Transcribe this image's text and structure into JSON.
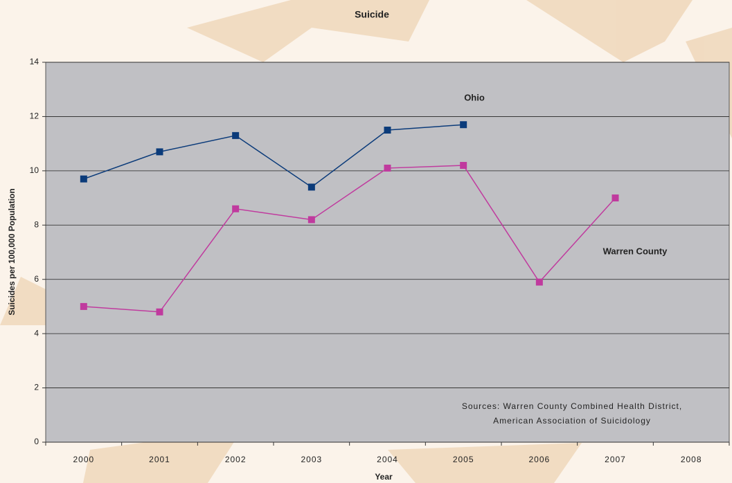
{
  "chart_data": {
    "type": "line",
    "title": "Suicide",
    "x_label": "Year",
    "y_label": "Suicides per 100,000 Population",
    "categories": [
      "2000",
      "2001",
      "2002",
      "2003",
      "2004",
      "2005",
      "2006",
      "2007",
      "2008"
    ],
    "series": [
      {
        "name": "Ohio",
        "color": "#0b3b7a",
        "values": [
          9.7,
          10.7,
          11.3,
          9.4,
          11.5,
          11.7,
          null,
          null,
          null
        ]
      },
      {
        "name": "Warren County",
        "color": "#c03a9e",
        "values": [
          5.0,
          4.8,
          8.6,
          8.2,
          10.1,
          10.2,
          5.9,
          9.0,
          null
        ]
      }
    ],
    "ylim": [
      0,
      14
    ],
    "yticks": [
      0,
      2,
      4,
      6,
      8,
      10,
      12,
      14
    ],
    "grid": true,
    "annotations": [
      "Sources: Warren County Combined Health District,",
      "American Association of Suicidology"
    ]
  }
}
